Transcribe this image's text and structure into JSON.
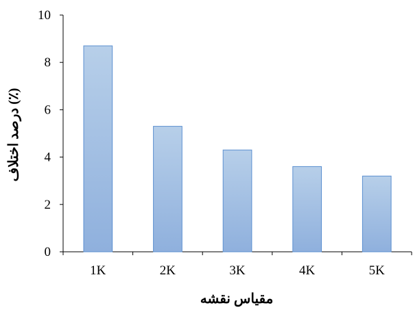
{
  "chart_data": {
    "type": "bar",
    "categories": [
      "1K",
      "2K",
      "3K",
      "4K",
      "5K"
    ],
    "values": [
      8.7,
      5.3,
      4.3,
      3.6,
      3.2
    ],
    "xlabel": "مقیاس نقشه",
    "ylabel": "درصد اختلاف (٪)",
    "ylim": [
      0,
      10
    ],
    "yticks": [
      0,
      2,
      4,
      6,
      8,
      10
    ],
    "grid": false,
    "legend": "none",
    "colors": {
      "bar_top": "#b7cfe9",
      "bar_bottom": "#8fb0dd",
      "bar_stroke": "#5b8fd0",
      "axis": "#000000"
    }
  }
}
